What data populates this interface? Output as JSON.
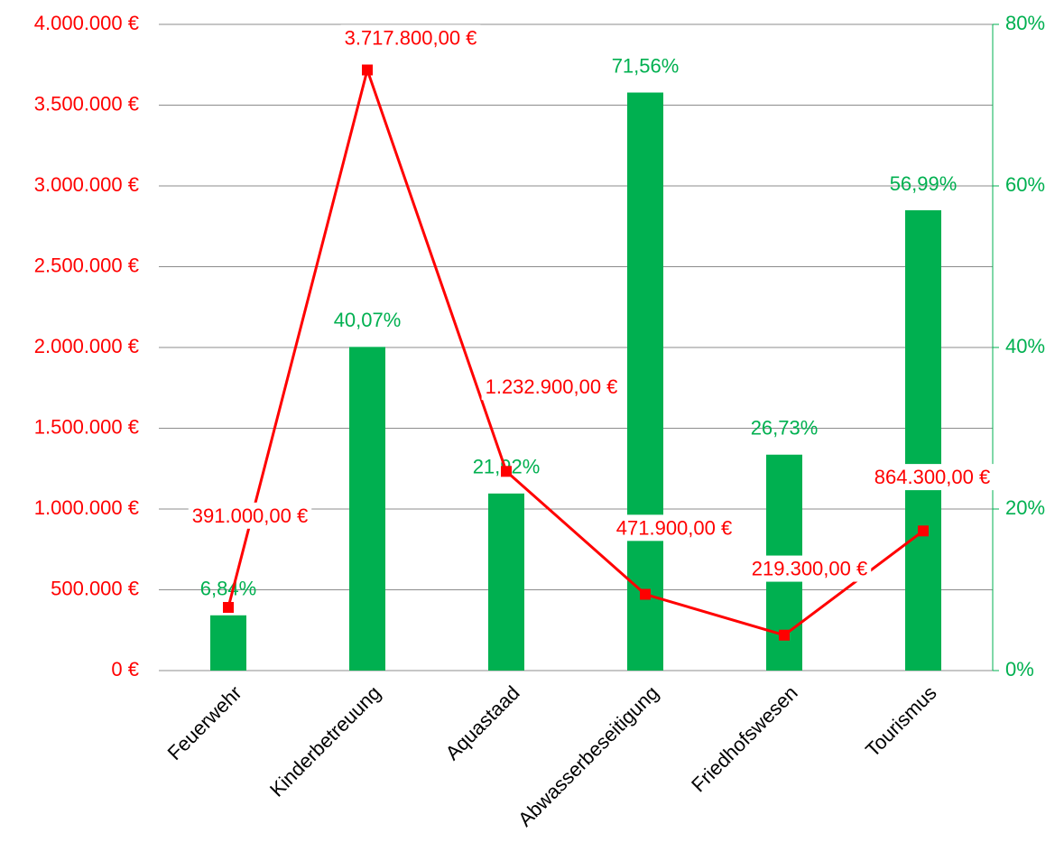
{
  "chart_data": {
    "type": "bar-line",
    "categories": [
      "Feuerwehr",
      "Kinderbetreuung",
      "Aquastaad",
      "Abwasserbeseitigung",
      "Friedhofswesen",
      "Tourismus"
    ],
    "series": [
      {
        "type": "bar",
        "axis": "y2",
        "color": "#00b050",
        "values": [
          6.84,
          40.07,
          21.92,
          71.56,
          26.73,
          56.99
        ],
        "value_labels": [
          "6,84%",
          "40,07%",
          "21,92%",
          "71,56%",
          "26,73%",
          "56,99%"
        ]
      },
      {
        "type": "line",
        "axis": "y",
        "color": "#ff0000",
        "values": [
          391000,
          3717800,
          1232900,
          471900,
          219300,
          864300
        ],
        "value_labels": [
          "391.000,00 €",
          "3.717.800,00 €",
          "1.232.900,00 €",
          "471.900,00 €",
          "219.300,00 €",
          "864.300,00 €"
        ]
      }
    ],
    "ylim": [
      0,
      4000000
    ],
    "yticks": [
      {
        "value": 0,
        "label": "0 €"
      },
      {
        "value": 500000,
        "label": "500.000 €"
      },
      {
        "value": 1000000,
        "label": "1.000.000 €"
      },
      {
        "value": 1500000,
        "label": "1.500.000 €"
      },
      {
        "value": 2000000,
        "label": "2.000.000 €"
      },
      {
        "value": 2500000,
        "label": "2.500.000 €"
      },
      {
        "value": 3000000,
        "label": "3.000.000 €"
      },
      {
        "value": 3500000,
        "label": "3.500.000 €"
      },
      {
        "value": 4000000,
        "label": "4.000.000 €"
      }
    ],
    "y2lim": [
      0,
      80
    ],
    "y2ticks": [
      {
        "value": 0,
        "label": "0%"
      },
      {
        "value": 20,
        "label": "20%"
      },
      {
        "value": 40,
        "label": "40%"
      },
      {
        "value": 60,
        "label": "60%"
      },
      {
        "value": 80,
        "label": "80%"
      }
    ],
    "ycolor": "#ff0000",
    "y2color": "#00b050",
    "grid": true
  }
}
